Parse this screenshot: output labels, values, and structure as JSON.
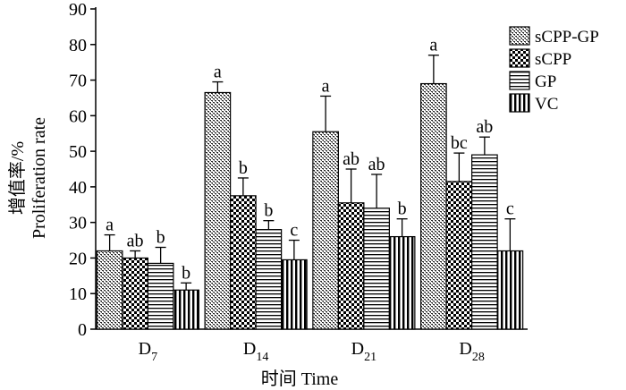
{
  "chart_data": {
    "type": "bar",
    "title": "",
    "xlabel": "时间 Time",
    "ylabel_cn": "增值率/%",
    "ylabel_en": "Proliferation rate",
    "ylim": [
      0,
      90
    ],
    "yticks": [
      0,
      10,
      20,
      30,
      40,
      50,
      60,
      70,
      80,
      90
    ],
    "categories": [
      {
        "base": "D",
        "sub": "7"
      },
      {
        "base": "D",
        "sub": "14"
      },
      {
        "base": "D",
        "sub": "21"
      },
      {
        "base": "D",
        "sub": "28"
      }
    ],
    "legend_position": "top-right",
    "series": [
      {
        "name": "sCPP-GP",
        "pattern": "pat-dots",
        "values": [
          22,
          66.5,
          55.5,
          69
        ],
        "errors": [
          4.5,
          3,
          10,
          8
        ],
        "labels": [
          "a",
          "a",
          "a",
          "a"
        ]
      },
      {
        "name": "sCPP",
        "pattern": "pat-check",
        "values": [
          20,
          37.5,
          35.5,
          41.5
        ],
        "errors": [
          2,
          5,
          9.5,
          8
        ],
        "labels": [
          "ab",
          "b",
          "ab",
          "bc"
        ]
      },
      {
        "name": "GP",
        "pattern": "pat-hlines",
        "values": [
          18.5,
          28,
          34,
          49
        ],
        "errors": [
          4.5,
          2.5,
          9.5,
          5
        ],
        "labels": [
          "b",
          "b",
          "ab",
          "ab"
        ]
      },
      {
        "name": "VC",
        "pattern": "pat-vlines",
        "values": [
          11,
          19.5,
          26,
          22
        ],
        "errors": [
          2,
          5.5,
          5,
          9
        ],
        "labels": [
          "b",
          "c",
          "b",
          "c"
        ]
      }
    ]
  }
}
